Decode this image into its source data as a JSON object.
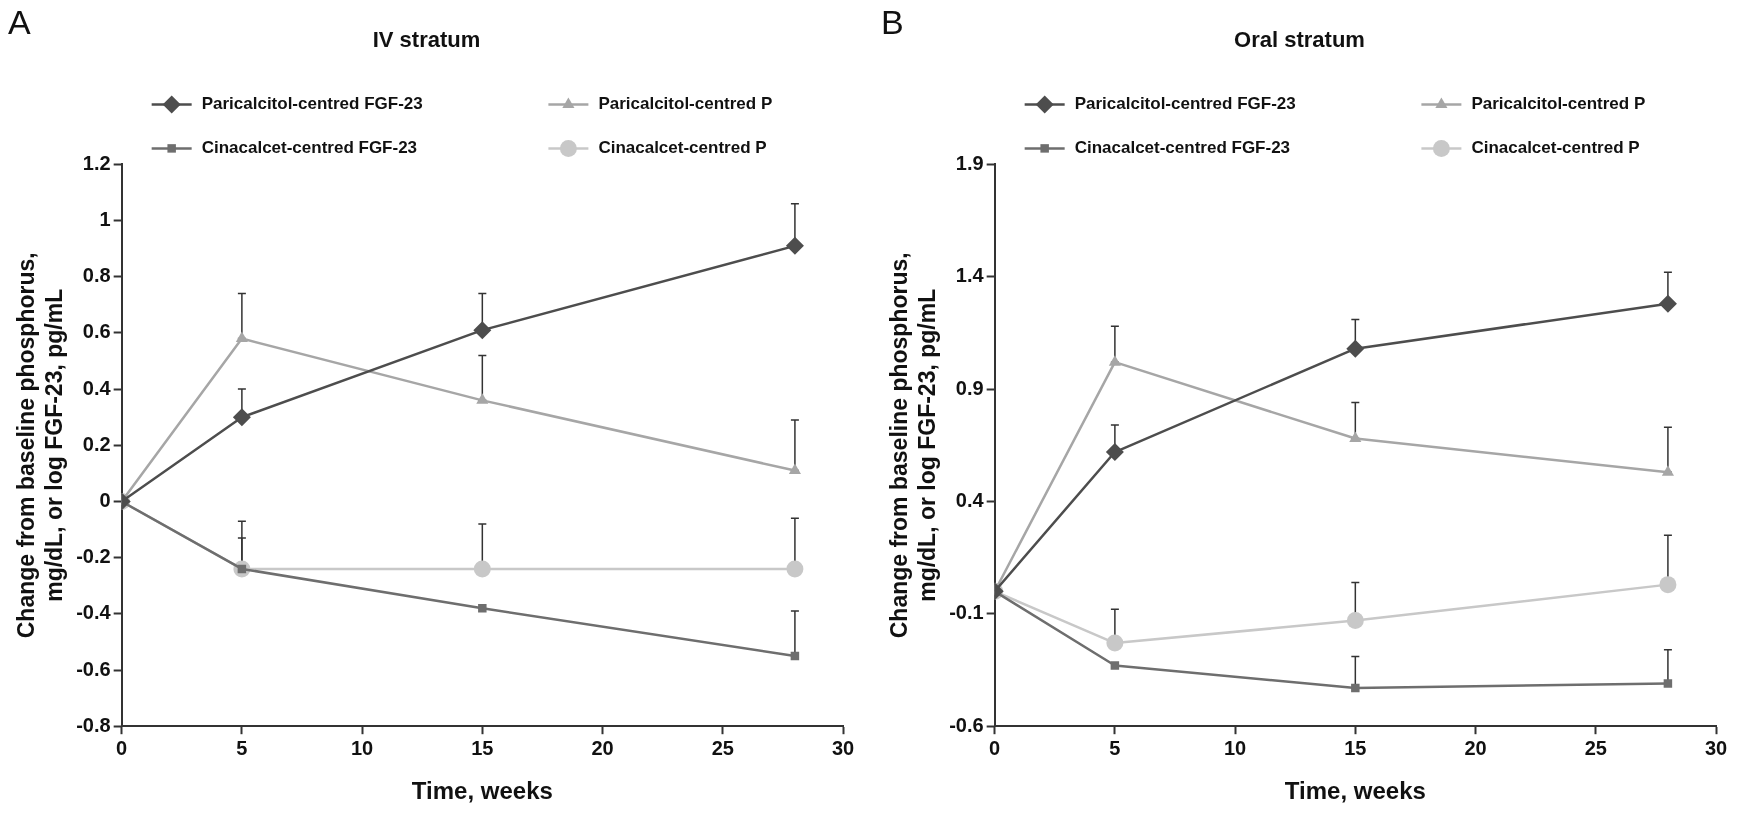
{
  "chart_data": [
    {
      "type": "line",
      "title": "IV stratum",
      "xlabel": "Time, weeks",
      "ylabel": "Change from baseline phosphorus, mg/dL, or log FGF-23, pg/mL",
      "annotations": [
        "A"
      ],
      "x": [
        0,
        5,
        15,
        28
      ],
      "xlim": [
        0,
        30
      ],
      "xticks": [
        0,
        5,
        10,
        15,
        20,
        25,
        30
      ],
      "ylim": [
        -0.8,
        1.2
      ],
      "yticks": [
        -0.8,
        -0.6,
        -0.4,
        -0.2,
        0,
        0.2,
        0.4,
        0.6,
        0.8,
        1,
        1.2
      ],
      "grid": false,
      "legend": "top",
      "line_style": "solid",
      "series": [
        {
          "name": "Paricalcitol-centred FGF-23",
          "color": "#4d4d4d",
          "marker": "diamond",
          "values": [
            0,
            0.3,
            0.61,
            0.91
          ],
          "errors": [
            null,
            [
              0.3,
              0.4
            ],
            [
              0.61,
              0.74
            ],
            [
              0.91,
              1.06
            ]
          ]
        },
        {
          "name": "Paricalcitol-centred P",
          "color": "#a6a6a6",
          "marker": "triangle",
          "values": [
            0,
            0.58,
            0.36,
            0.11
          ],
          "errors": [
            null,
            [
              0.58,
              0.74
            ],
            [
              0.36,
              0.52
            ],
            [
              0.11,
              0.29
            ]
          ]
        },
        {
          "name": "Cinacalcet-centred FGF-23",
          "color": "#6e6e6e",
          "marker": "square",
          "values": [
            0,
            -0.24,
            -0.38,
            -0.55
          ],
          "errors": [
            null,
            [
              -0.24,
              -0.13
            ],
            null,
            [
              -0.55,
              -0.39
            ]
          ]
        },
        {
          "name": "Cinacalcet-centred P",
          "color": "#c8c8c8",
          "marker": "circle",
          "values": [
            0,
            -0.24,
            -0.24,
            -0.24
          ],
          "errors": [
            null,
            [
              -0.24,
              -0.07
            ],
            [
              -0.24,
              -0.08
            ],
            [
              -0.24,
              -0.06
            ]
          ]
        }
      ]
    },
    {
      "type": "line",
      "title": "Oral stratum",
      "xlabel": "Time, weeks",
      "ylabel": "Change from baseline phosphorus, mg/dL, or log FGF-23, pg/mL",
      "annotations": [
        "B"
      ],
      "x": [
        0,
        5,
        15,
        28
      ],
      "xlim": [
        0,
        30
      ],
      "xticks": [
        0,
        5,
        10,
        15,
        20,
        25,
        30
      ],
      "ylim": [
        -0.6,
        1.9
      ],
      "yticks": [
        -0.6,
        -0.1,
        0.4,
        0.9,
        1.4,
        1.9
      ],
      "grid": false,
      "legend": "top",
      "line_style": "solid",
      "series": [
        {
          "name": "Paricalcitol-centred FGF-23",
          "color": "#4d4d4d",
          "marker": "diamond",
          "values": [
            0,
            0.62,
            1.08,
            1.28
          ],
          "errors": [
            null,
            [
              0.62,
              0.74
            ],
            [
              1.08,
              1.21
            ],
            [
              1.28,
              1.42
            ]
          ]
        },
        {
          "name": "Paricalcitol-centred P",
          "color": "#a6a6a6",
          "marker": "triangle",
          "values": [
            0,
            1.02,
            0.68,
            0.53
          ],
          "errors": [
            null,
            [
              1.02,
              1.18
            ],
            [
              0.68,
              0.84
            ],
            [
              0.53,
              0.73
            ]
          ]
        },
        {
          "name": "Cinacalcet-centred FGF-23",
          "color": "#6e6e6e",
          "marker": "square",
          "values": [
            0,
            -0.33,
            -0.43,
            -0.41
          ],
          "errors": [
            null,
            null,
            [
              -0.43,
              -0.29
            ],
            [
              -0.41,
              -0.26
            ]
          ]
        },
        {
          "name": "Cinacalcet-centred P",
          "color": "#c8c8c8",
          "marker": "circle",
          "values": [
            0,
            -0.23,
            -0.13,
            0.03
          ],
          "errors": [
            null,
            [
              -0.23,
              -0.08
            ],
            [
              -0.13,
              0.04
            ],
            [
              0.03,
              0.25
            ]
          ]
        }
      ]
    }
  ]
}
